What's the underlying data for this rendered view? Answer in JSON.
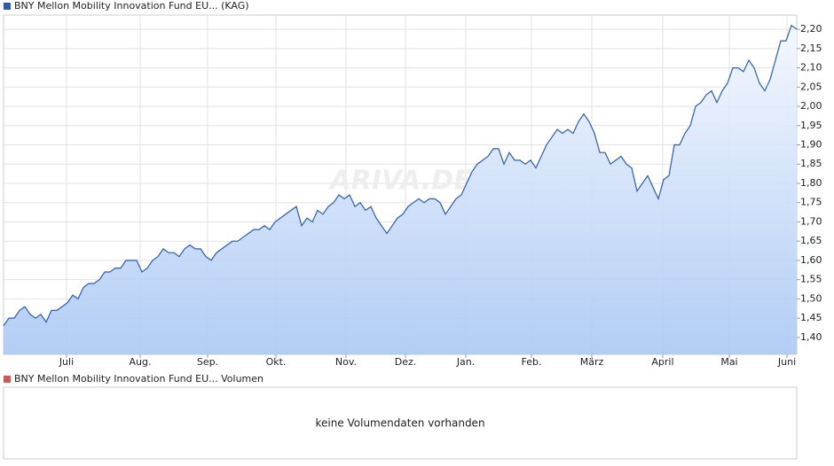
{
  "chart_data": {
    "type": "line",
    "watermark": "ARIVA.DE",
    "series": [
      {
        "name": "BNY Mellon Mobility Innovation Fund EU... (KAG)",
        "color": "#2a5db0",
        "values": [
          1.43,
          1.45,
          1.45,
          1.47,
          1.48,
          1.46,
          1.45,
          1.46,
          1.44,
          1.47,
          1.47,
          1.48,
          1.49,
          1.51,
          1.5,
          1.53,
          1.54,
          1.54,
          1.55,
          1.57,
          1.57,
          1.58,
          1.58,
          1.6,
          1.6,
          1.6,
          1.57,
          1.58,
          1.6,
          1.61,
          1.63,
          1.62,
          1.62,
          1.61,
          1.63,
          1.64,
          1.63,
          1.63,
          1.61,
          1.6,
          1.62,
          1.63,
          1.64,
          1.65,
          1.65,
          1.66,
          1.67,
          1.68,
          1.68,
          1.69,
          1.68,
          1.7,
          1.71,
          1.72,
          1.73,
          1.74,
          1.69,
          1.71,
          1.7,
          1.73,
          1.72,
          1.74,
          1.75,
          1.77,
          1.76,
          1.77,
          1.74,
          1.75,
          1.73,
          1.74,
          1.71,
          1.69,
          1.67,
          1.69,
          1.71,
          1.72,
          1.74,
          1.75,
          1.76,
          1.75,
          1.76,
          1.76,
          1.75,
          1.72,
          1.74,
          1.76,
          1.77,
          1.8,
          1.83,
          1.85,
          1.86,
          1.87,
          1.89,
          1.89,
          1.85,
          1.88,
          1.86,
          1.86,
          1.85,
          1.86,
          1.84,
          1.87,
          1.9,
          1.92,
          1.94,
          1.93,
          1.94,
          1.93,
          1.96,
          1.98,
          1.96,
          1.93,
          1.88,
          1.88,
          1.85,
          1.86,
          1.87,
          1.85,
          1.84,
          1.78,
          1.8,
          1.82,
          1.79,
          1.76,
          1.81,
          1.82,
          1.9,
          1.9,
          1.93,
          1.95,
          2.0,
          2.01,
          2.03,
          2.04,
          2.01,
          2.04,
          2.06,
          2.1,
          2.1,
          2.09,
          2.12,
          2.1,
          2.06,
          2.04,
          2.07,
          2.12,
          2.17,
          2.17,
          2.21,
          2.2
        ]
      }
    ],
    "xlim": [
      0,
      149
    ],
    "xticks": [
      {
        "value": 11.83,
        "label": "Juli"
      },
      {
        "value": 25.67,
        "label": "Aug."
      },
      {
        "value": 38.33,
        "label": "Sep."
      },
      {
        "value": 51.17,
        "label": "Okt."
      },
      {
        "value": 64.33,
        "label": "Nov."
      },
      {
        "value": 75.5,
        "label": "Dez."
      },
      {
        "value": 86.83,
        "label": "Jan."
      },
      {
        "value": 99.17,
        "label": "Feb."
      },
      {
        "value": 110.5,
        "label": "März"
      },
      {
        "value": 123.83,
        "label": "April"
      },
      {
        "value": 136.33,
        "label": "Mai"
      },
      {
        "value": 147.17,
        "label": "Juni"
      }
    ],
    "ylim": [
      1.356,
      2.237
    ],
    "yticks": [
      {
        "value": 1.4,
        "label": "1,40"
      },
      {
        "value": 1.45,
        "label": "1,45"
      },
      {
        "value": 1.5,
        "label": "1,50"
      },
      {
        "value": 1.55,
        "label": "1,55"
      },
      {
        "value": 1.6,
        "label": "1,60"
      },
      {
        "value": 1.65,
        "label": "1,65"
      },
      {
        "value": 1.7,
        "label": "1,70"
      },
      {
        "value": 1.75,
        "label": "1,75"
      },
      {
        "value": 1.8,
        "label": "1,80"
      },
      {
        "value": 1.85,
        "label": "1,85"
      },
      {
        "value": 1.9,
        "label": "1,90"
      },
      {
        "value": 1.95,
        "label": "1,95"
      },
      {
        "value": 2.0,
        "label": "2,00"
      },
      {
        "value": 2.05,
        "label": "2,05"
      },
      {
        "value": 2.1,
        "label": "2,10"
      },
      {
        "value": 2.15,
        "label": "2,15"
      },
      {
        "value": 2.2,
        "label": "2,20"
      }
    ],
    "grid": true
  },
  "volume_panel": {
    "legend": "BNY Mellon Mobility Innovation Fund EU... Volumen",
    "color": "#d9534f",
    "message": "keine Volumendaten vorhanden"
  }
}
